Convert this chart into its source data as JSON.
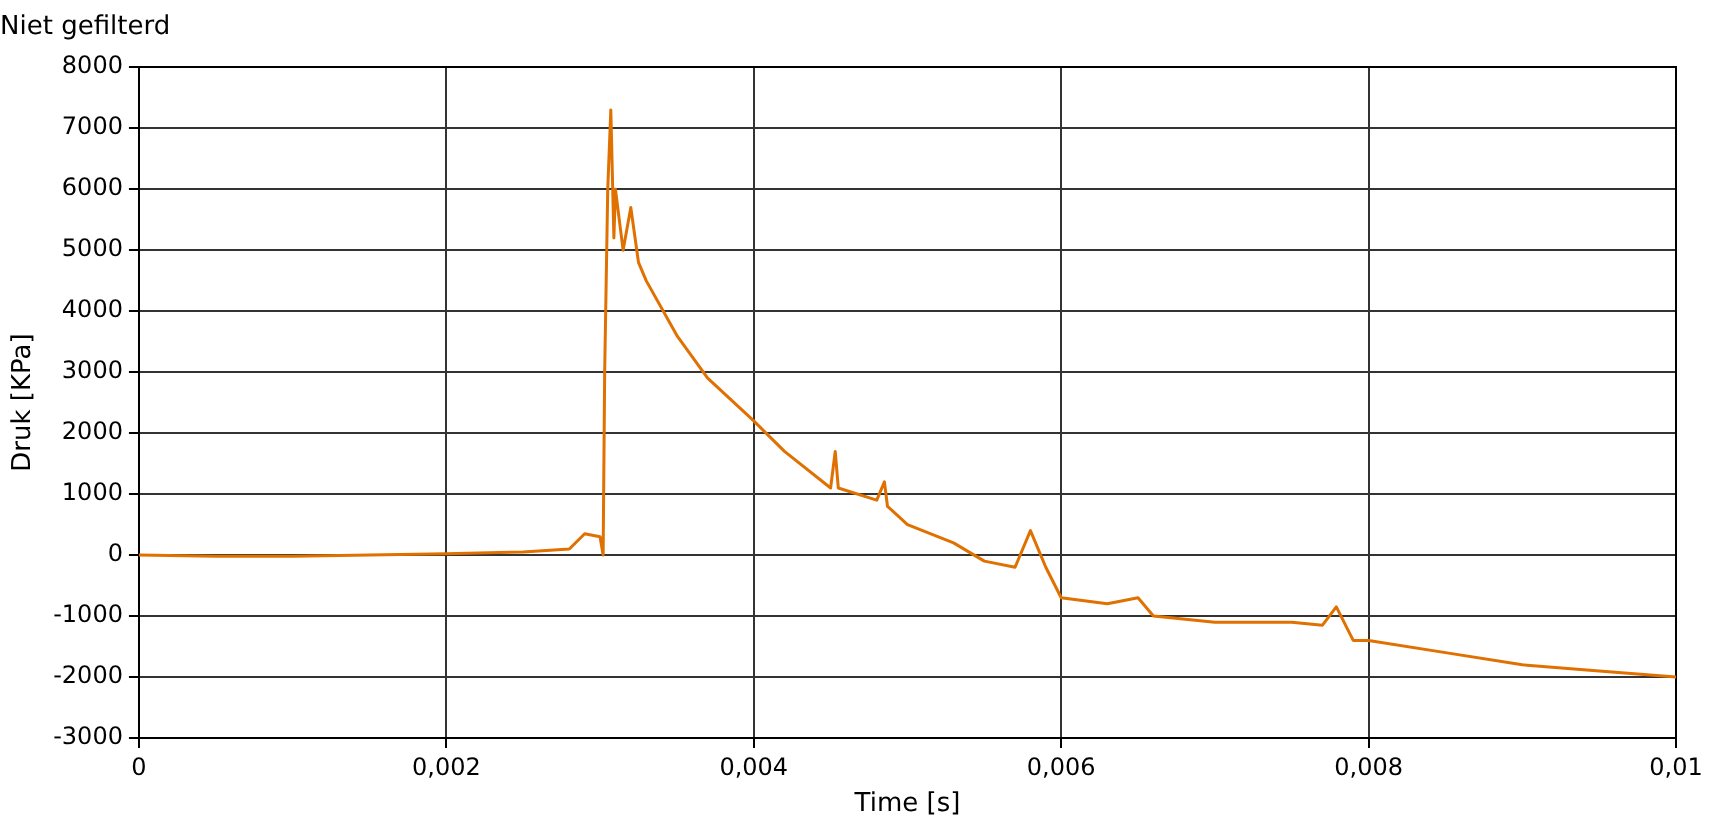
{
  "chart_data": {
    "type": "line",
    "title": "Niet gefilterd",
    "xlabel": "Time [s]",
    "ylabel": "Druk [KPa]",
    "xlim": [
      0,
      0.01
    ],
    "ylim": [
      -3000,
      8000
    ],
    "xticks": [
      0,
      {
        "value": 0.002,
        "label": "0,002"
      },
      {
        "value": 0.004,
        "label": "0,004"
      },
      {
        "value": 0.006,
        "label": "0,006"
      },
      {
        "value": 0.008,
        "label": "0,008"
      },
      {
        "value": 0.01,
        "label": "0,01"
      }
    ],
    "yticks": [
      -3000,
      -2000,
      -1000,
      0,
      1000,
      2000,
      3000,
      4000,
      5000,
      6000,
      7000,
      8000
    ],
    "grid": true,
    "legend": false,
    "marker": "none",
    "line_style": "solid",
    "series": [
      {
        "color": "#e07000",
        "x": [
          0,
          0.0005,
          0.001,
          0.0015,
          0.002,
          0.0025,
          0.0028,
          0.0029,
          0.003,
          0.00302,
          0.00303,
          0.00305,
          0.00307,
          0.00309,
          0.0031,
          0.00315,
          0.0032,
          0.00325,
          0.0033,
          0.0035,
          0.0037,
          0.004,
          0.0042,
          0.0045,
          0.00453,
          0.00455,
          0.0048,
          0.00485,
          0.00487,
          0.005,
          0.0053,
          0.0055,
          0.0057,
          0.0058,
          0.0059,
          0.006,
          0.0063,
          0.0065,
          0.0066,
          0.007,
          0.0072,
          0.0075,
          0.0077,
          0.00779,
          0.0079,
          0.008,
          0.0085,
          0.009,
          0.0095,
          0.01
        ],
        "values": [
          0,
          -20,
          -20,
          0,
          20,
          50,
          100,
          350,
          300,
          0,
          3000,
          6000,
          7300,
          5200,
          6000,
          5000,
          5700,
          4800,
          4500,
          3600,
          2900,
          2200,
          1700,
          1100,
          1700,
          1100,
          900,
          1200,
          800,
          500,
          200,
          -100,
          -200,
          400,
          -200,
          -700,
          -800,
          -700,
          -1000,
          -1100,
          -1100,
          -1100,
          -1150,
          -850,
          -1400,
          -1400,
          -1600,
          -1800,
          -1900,
          -2000
        ]
      }
    ]
  }
}
